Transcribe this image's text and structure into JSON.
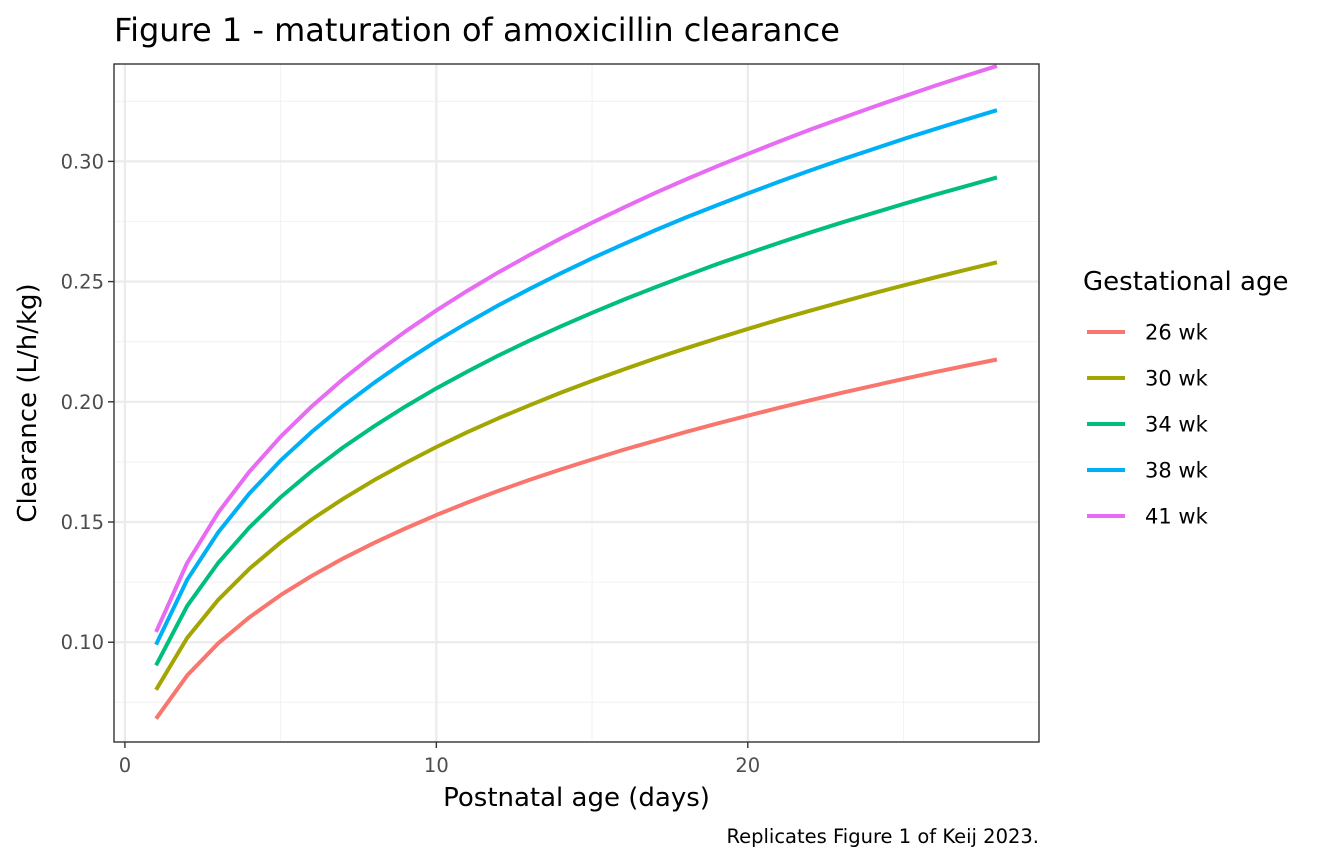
{
  "chart_data": {
    "type": "line",
    "title": "Figure 1 - maturation of amoxicillin clearance",
    "xlabel": "Postnatal age (days)",
    "ylabel": "Clearance (L/h/kg)",
    "caption": "Replicates Figure 1 of Keij 2023.",
    "legend_title": "Gestational age",
    "legend_position": "right",
    "grid": true,
    "xlim": [
      -0.35,
      29.35
    ],
    "ylim": [
      0.0585,
      0.3405
    ],
    "x_ticks": [
      0,
      10,
      20
    ],
    "x_tick_labels": [
      "0",
      "10",
      "20"
    ],
    "x_minor_ticks": [
      5,
      15,
      25
    ],
    "y_ticks": [
      0.1,
      0.15,
      0.2,
      0.25,
      0.3
    ],
    "y_tick_labels": [
      "0.10",
      "0.15",
      "0.20",
      "0.25",
      "0.30"
    ],
    "y_minor_ticks": [
      0.075,
      0.125,
      0.175,
      0.225,
      0.275,
      0.325
    ],
    "x": [
      1,
      2,
      3,
      4,
      5,
      6,
      7,
      8,
      9,
      10,
      11,
      12,
      13,
      14,
      15,
      16,
      17,
      18,
      19,
      20,
      21,
      22,
      23,
      24,
      25,
      26,
      27,
      28
    ],
    "series": [
      {
        "name": "26 wk",
        "color": "#f8766d",
        "values": [
          0.0682,
          0.0862,
          0.0996,
          0.1104,
          0.1196,
          0.1276,
          0.1348,
          0.1413,
          0.1473,
          0.1529,
          0.1581,
          0.163,
          0.1676,
          0.1719,
          0.176,
          0.18,
          0.1837,
          0.1874,
          0.1909,
          0.1942,
          0.1975,
          0.2006,
          0.2037,
          0.2066,
          0.2095,
          0.2123,
          0.215,
          0.2176
        ]
      },
      {
        "name": "30 wk",
        "color": "#a3a500",
        "values": [
          0.0802,
          0.1018,
          0.1177,
          0.1306,
          0.1415,
          0.1511,
          0.1596,
          0.1674,
          0.1745,
          0.1812,
          0.1874,
          0.1932,
          0.1986,
          0.2038,
          0.2087,
          0.2134,
          0.2179,
          0.2222,
          0.2263,
          0.2303,
          0.2342,
          0.2379,
          0.2415,
          0.245,
          0.2484,
          0.2517,
          0.2549,
          0.258
        ]
      },
      {
        "name": "34 wk",
        "color": "#00bf7d",
        "values": [
          0.0904,
          0.1151,
          0.1331,
          0.1478,
          0.1603,
          0.1712,
          0.181,
          0.1898,
          0.198,
          0.2056,
          0.2126,
          0.2193,
          0.2255,
          0.2314,
          0.237,
          0.2424,
          0.2475,
          0.2524,
          0.2572,
          0.2617,
          0.2661,
          0.2704,
          0.2745,
          0.2784,
          0.2823,
          0.2861,
          0.2897,
          0.2933
        ]
      },
      {
        "name": "38 wk",
        "color": "#00b0f6",
        "values": [
          0.099,
          0.126,
          0.1458,
          0.1619,
          0.1756,
          0.1875,
          0.1982,
          0.2079,
          0.2169,
          0.2252,
          0.2329,
          0.2402,
          0.247,
          0.2535,
          0.2597,
          0.2655,
          0.2712,
          0.2766,
          0.2817,
          0.2867,
          0.2915,
          0.2962,
          0.3007,
          0.305,
          0.3093,
          0.3134,
          0.3174,
          0.3213
        ]
      },
      {
        "name": "41 wk",
        "color": "#e76bf3",
        "values": [
          0.1043,
          0.133,
          0.154,
          0.171,
          0.1855,
          0.1981,
          0.2094,
          0.2197,
          0.2292,
          0.238,
          0.2462,
          0.2539,
          0.2611,
          0.268,
          0.2745,
          0.2807,
          0.2867,
          0.2924,
          0.2979,
          0.3031,
          0.3082,
          0.3132,
          0.3179,
          0.3225,
          0.327,
          0.3314,
          0.3356,
          0.3397
        ]
      }
    ]
  }
}
